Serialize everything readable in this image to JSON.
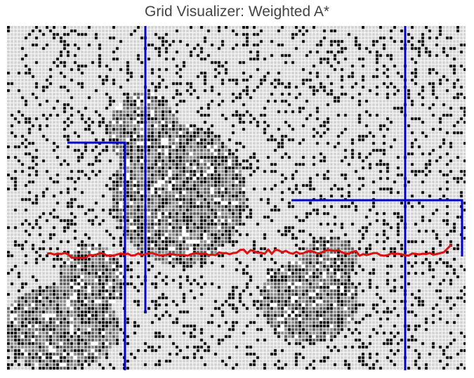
{
  "title": "Grid Visualizer: Weighted A*",
  "colors": {
    "background": "#ffffff",
    "empty_cell": "#d3d3d3",
    "grid_line": "#ffffff",
    "wall": "#000000",
    "explored_dark": "#5a5a5a",
    "explored_light": "#8c8c8c",
    "frontier": "#ffffff",
    "barrier_line": "#0000cc",
    "path": "#dd1111"
  }
}
